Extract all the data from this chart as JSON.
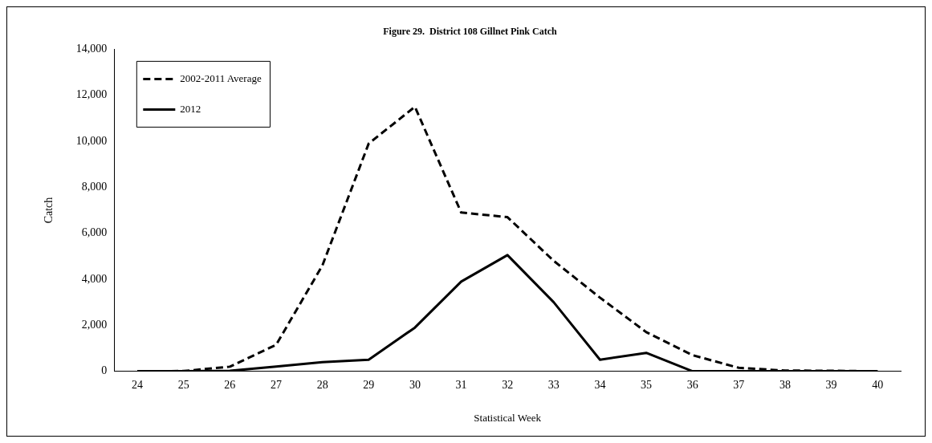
{
  "chart_data": {
    "type": "line",
    "title": "Figure 29.  District 108 Gillnet Pink Catch",
    "xlabel": "Statistical Week",
    "ylabel": "Catch",
    "categories": [
      "24",
      "25",
      "26",
      "27",
      "28",
      "29",
      "30",
      "31",
      "32",
      "33",
      "34",
      "35",
      "36",
      "37",
      "38",
      "39",
      "40"
    ],
    "series": [
      {
        "name": "2002-2011 Average",
        "color": "#000000",
        "line_style": "dashed",
        "values": [
          0,
          10,
          200,
          1150,
          4600,
          9900,
          11500,
          6900,
          6700,
          4800,
          3200,
          1700,
          700,
          150,
          30,
          20,
          0
        ]
      },
      {
        "name": "2012",
        "color": "#000000",
        "line_style": "solid",
        "values": [
          0,
          0,
          20,
          200,
          400,
          500,
          1900,
          3900,
          5050,
          3000,
          500,
          800,
          0,
          0,
          0,
          0,
          0
        ]
      }
    ],
    "ylim": [
      0,
      14000
    ],
    "yticks": [
      {
        "value": 0,
        "label": "0"
      },
      {
        "value": 2000,
        "label": "2,000"
      },
      {
        "value": 4000,
        "label": "4,000"
      },
      {
        "value": 6000,
        "label": "6,000"
      },
      {
        "value": 8000,
        "label": "8,000"
      },
      {
        "value": 10000,
        "label": "10,000"
      },
      {
        "value": 12000,
        "label": "12,000"
      },
      {
        "value": 14000,
        "label": "14,000"
      }
    ],
    "grid": false,
    "legend": "top left",
    "marker": "none"
  }
}
